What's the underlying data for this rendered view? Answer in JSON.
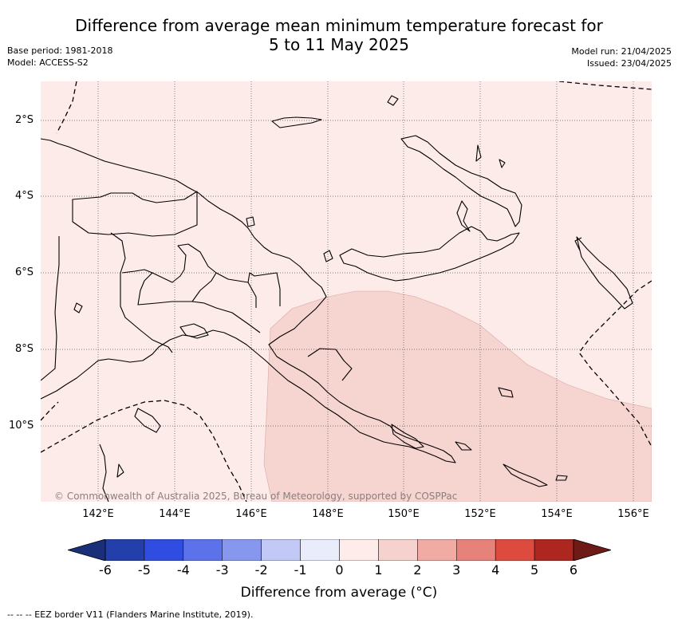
{
  "header": {
    "title_line1": "Difference from average mean minimum temperature forecast for",
    "title_line2": "5 to 11 May 2025",
    "base_period": "Base period: 1981-2018",
    "model": "Model: ACCESS-S2",
    "model_run": "Model run: 21/04/2025",
    "issued": "Issued: 23/04/2025"
  },
  "map": {
    "lat_labels": [
      "2°S",
      "4°S",
      "6°S",
      "8°S",
      "10°S"
    ],
    "lon_labels": [
      "142°E",
      "144°E",
      "146°E",
      "148°E",
      "150°E",
      "152°E",
      "154°E",
      "156°E"
    ],
    "copyright": "© Commonwealth of Australia 2025, Bureau of Meteorology, supported by COSPPac",
    "background_color": "#fcebe9",
    "anomaly_zone_color": "#f6d4d0"
  },
  "colorbar": {
    "ticks": [
      "-6",
      "-5",
      "-4",
      "-3",
      "-2",
      "-1",
      "0",
      "1",
      "2",
      "3",
      "4",
      "5",
      "6"
    ],
    "colors": [
      "#233fab",
      "#2f4de0",
      "#5b72ea",
      "#8897ee",
      "#c3c9f6",
      "#e9ecfb",
      "#fdecea",
      "#f6d2ce",
      "#f0aba4",
      "#e6827a",
      "#dc4b3d",
      "#ad2620"
    ],
    "min_color": "#1a2f7a",
    "max_color": "#6e1a16",
    "label": "Difference from average (°C)"
  },
  "legend_note": "--  --  -- EEZ border V11 (Flanders Marine Institute, 2019)."
}
